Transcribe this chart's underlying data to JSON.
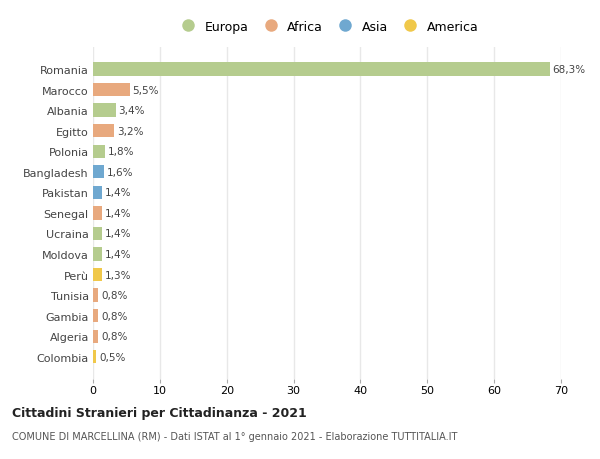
{
  "countries": [
    "Romania",
    "Marocco",
    "Albania",
    "Egitto",
    "Polonia",
    "Bangladesh",
    "Pakistan",
    "Senegal",
    "Ucraina",
    "Moldova",
    "Perù",
    "Tunisia",
    "Gambia",
    "Algeria",
    "Colombia"
  ],
  "values": [
    68.3,
    5.5,
    3.4,
    3.2,
    1.8,
    1.6,
    1.4,
    1.4,
    1.4,
    1.4,
    1.3,
    0.8,
    0.8,
    0.8,
    0.5
  ],
  "labels": [
    "68,3%",
    "5,5%",
    "3,4%",
    "3,2%",
    "1,8%",
    "1,6%",
    "1,4%",
    "1,4%",
    "1,4%",
    "1,4%",
    "1,3%",
    "0,8%",
    "0,8%",
    "0,8%",
    "0,5%"
  ],
  "continents": [
    "Europa",
    "Africa",
    "Europa",
    "Africa",
    "Europa",
    "Asia",
    "Asia",
    "Africa",
    "Europa",
    "Europa",
    "America",
    "Africa",
    "Africa",
    "Africa",
    "America"
  ],
  "continent_colors": {
    "Europa": "#b5cc8e",
    "Africa": "#e8a97e",
    "Asia": "#6fa8d0",
    "America": "#f0c84a"
  },
  "legend_order": [
    "Europa",
    "Africa",
    "Asia",
    "America"
  ],
  "title": "Cittadini Stranieri per Cittadinanza - 2021",
  "subtitle": "COMUNE DI MARCELLINA (RM) - Dati ISTAT al 1° gennaio 2021 - Elaborazione TUTTITALIA.IT",
  "xlim": [
    0,
    70
  ],
  "xticks": [
    0,
    10,
    20,
    30,
    40,
    50,
    60,
    70
  ],
  "bg_color": "#ffffff",
  "grid_color": "#e8e8e8",
  "bar_height": 0.65
}
